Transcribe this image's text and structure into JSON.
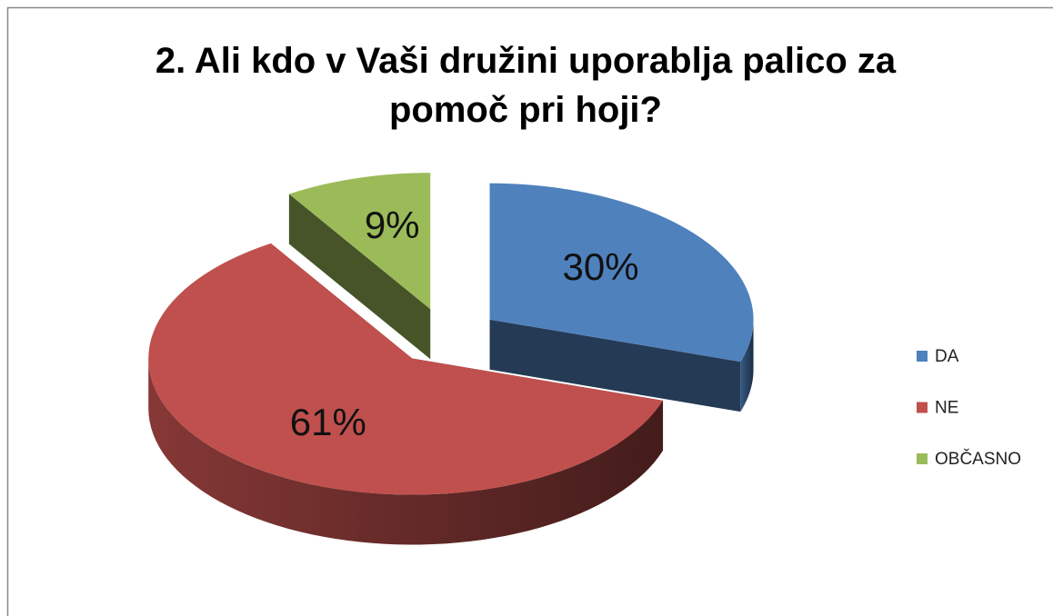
{
  "chart_data": {
    "type": "pie",
    "title": "2. Ali kdo v Vaši družini uporablja palico za pomoč pri hoji?",
    "categories": [
      "DA",
      "NE",
      "OBČASNO"
    ],
    "values": [
      30,
      61,
      9
    ],
    "value_labels": [
      "30%",
      "61%",
      "9%"
    ],
    "colors": [
      "#4f81bd",
      "#c0504d",
      "#9bbb59"
    ],
    "legend": "right"
  }
}
